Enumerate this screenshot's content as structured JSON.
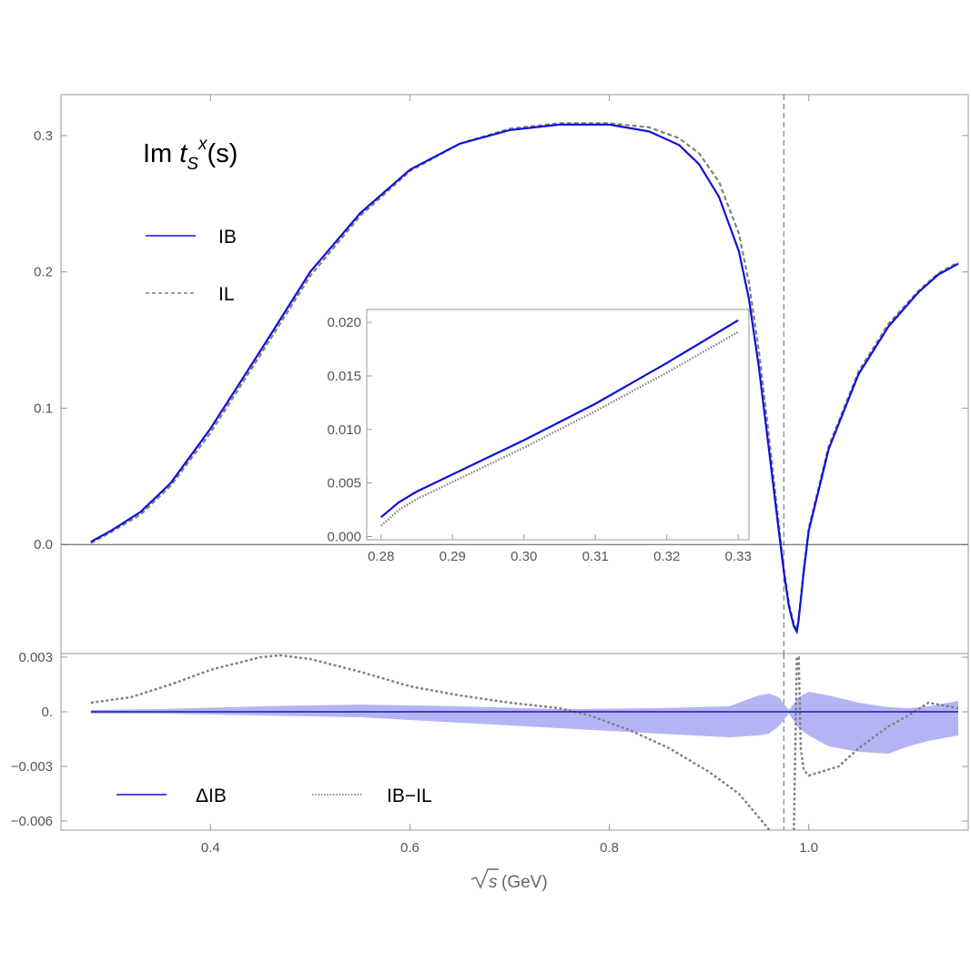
{
  "chart_data": [
    {
      "id": "main",
      "type": "line",
      "title": "",
      "annotation": {
        "prefix": "Im ",
        "t": "t",
        "sub": "S",
        "sup": "x",
        "suffix": "(s)"
      },
      "xlabel": "",
      "ylabel": "",
      "xlim": [
        0.25,
        1.16
      ],
      "ylim": [
        -0.08,
        0.33
      ],
      "xticks": [
        {
          "v": 0.4,
          "label": "0.4"
        },
        {
          "v": 0.6,
          "label": "0.6"
        },
        {
          "v": 0.8,
          "label": "0.8"
        },
        {
          "v": 1.0,
          "label": "1.0"
        }
      ],
      "yticks": [
        {
          "v": 0.0,
          "label": "0.0"
        },
        {
          "v": 0.1,
          "label": "0.1"
        },
        {
          "v": 0.2,
          "label": "0.2"
        },
        {
          "v": 0.3,
          "label": "0.3"
        }
      ],
      "vline_x": 0.975,
      "legend_position": "left",
      "colors": {
        "ib": "#1010d8",
        "il": "#808080"
      },
      "series": [
        {
          "name": "IB",
          "style": "solid",
          "x": [
            0.28,
            0.3,
            0.33,
            0.36,
            0.4,
            0.45,
            0.5,
            0.55,
            0.6,
            0.65,
            0.7,
            0.75,
            0.8,
            0.84,
            0.87,
            0.89,
            0.91,
            0.93,
            0.94,
            0.95,
            0.96,
            0.97,
            0.975,
            0.98,
            0.985,
            0.988,
            0.99,
            0.995,
            1.0,
            1.02,
            1.05,
            1.08,
            1.11,
            1.13,
            1.15
          ],
          "y": [
            0.002,
            0.01,
            0.024,
            0.045,
            0.085,
            0.142,
            0.2,
            0.243,
            0.275,
            0.294,
            0.304,
            0.308,
            0.308,
            0.303,
            0.293,
            0.279,
            0.255,
            0.215,
            0.18,
            0.13,
            0.07,
            0.01,
            -0.02,
            -0.045,
            -0.06,
            -0.064,
            -0.055,
            -0.02,
            0.01,
            0.07,
            0.125,
            0.16,
            0.185,
            0.198,
            0.206
          ]
        },
        {
          "name": "IL",
          "style": "dashed",
          "x": [
            0.28,
            0.3,
            0.33,
            0.36,
            0.4,
            0.45,
            0.5,
            0.55,
            0.6,
            0.65,
            0.7,
            0.75,
            0.8,
            0.84,
            0.87,
            0.89,
            0.91,
            0.93,
            0.94,
            0.95,
            0.96,
            0.97,
            0.975,
            0.98,
            0.985,
            0.988,
            0.99,
            0.995,
            1.0,
            1.02,
            1.05,
            1.08,
            1.11,
            1.13,
            1.15
          ],
          "y": [
            0.001,
            0.009,
            0.022,
            0.043,
            0.082,
            0.139,
            0.197,
            0.241,
            0.274,
            0.294,
            0.305,
            0.309,
            0.309,
            0.306,
            0.298,
            0.287,
            0.266,
            0.228,
            0.192,
            0.142,
            0.08,
            0.015,
            -0.017,
            -0.043,
            -0.058,
            -0.063,
            -0.053,
            -0.018,
            0.012,
            0.072,
            0.127,
            0.162,
            0.186,
            0.199,
            0.207
          ]
        }
      ]
    },
    {
      "id": "inset",
      "type": "line",
      "xlim": [
        0.278,
        0.3315
      ],
      "ylim": [
        -0.0003,
        0.0212
      ],
      "xticks": [
        {
          "v": 0.28,
          "label": "0.28"
        },
        {
          "v": 0.29,
          "label": "0.29"
        },
        {
          "v": 0.3,
          "label": "0.30"
        },
        {
          "v": 0.31,
          "label": "0.31"
        },
        {
          "v": 0.32,
          "label": "0.32"
        },
        {
          "v": 0.33,
          "label": "0.33"
        }
      ],
      "yticks": [
        {
          "v": 0.0,
          "label": "0.000"
        },
        {
          "v": 0.005,
          "label": "0.005"
        },
        {
          "v": 0.01,
          "label": "0.010"
        },
        {
          "v": 0.015,
          "label": "0.015"
        },
        {
          "v": 0.02,
          "label": "0.020"
        }
      ],
      "series": [
        {
          "name": "IB",
          "style": "solid",
          "x": [
            0.28,
            0.2825,
            0.285,
            0.29,
            0.295,
            0.3,
            0.305,
            0.31,
            0.315,
            0.32,
            0.325,
            0.33
          ],
          "y": [
            0.0018,
            0.0032,
            0.0042,
            0.0058,
            0.0074,
            0.009,
            0.0107,
            0.0124,
            0.0143,
            0.0162,
            0.0182,
            0.0202
          ]
        },
        {
          "name": "IL",
          "style": "dotted",
          "x": [
            0.28,
            0.2825,
            0.285,
            0.29,
            0.295,
            0.3,
            0.305,
            0.31,
            0.315,
            0.32,
            0.325,
            0.33
          ],
          "y": [
            0.001,
            0.0025,
            0.0035,
            0.0051,
            0.0067,
            0.0083,
            0.01,
            0.0117,
            0.0135,
            0.0153,
            0.0172,
            0.0191
          ]
        }
      ]
    },
    {
      "id": "lower",
      "type": "area",
      "xlabel_sqrt": "s",
      "xlabel_unit": "(GeV)",
      "xlim": [
        0.25,
        1.16
      ],
      "ylim": [
        -0.0065,
        0.0032
      ],
      "xticks": [
        {
          "v": 0.4,
          "label": "0.4"
        },
        {
          "v": 0.6,
          "label": "0.6"
        },
        {
          "v": 0.8,
          "label": "0.8"
        },
        {
          "v": 1.0,
          "label": "1.0"
        }
      ],
      "yticks": [
        {
          "v": 0.003,
          "label": "0.003"
        },
        {
          "v": 0.0,
          "label": "0."
        },
        {
          "v": -0.003,
          "label": "−0.003"
        },
        {
          "v": -0.006,
          "label": "−0.006"
        }
      ],
      "vline_x": 0.975,
      "legend_position": "bottom-left",
      "colors": {
        "band": "#b4b4f4",
        "center": "#1a1aa6",
        "diff": "#808080"
      },
      "series": [
        {
          "name": "ΔIB",
          "kind": "band",
          "x": [
            0.28,
            0.35,
            0.45,
            0.55,
            0.65,
            0.75,
            0.85,
            0.92,
            0.95,
            0.96,
            0.97,
            0.98,
            0.99,
            1.0,
            1.02,
            1.05,
            1.08,
            1.1,
            1.12,
            1.15
          ],
          "upper": [
            0.0001,
            0.00015,
            0.0003,
            0.0004,
            0.0003,
            0.00015,
            0.0002,
            0.0003,
            0.0009,
            0.001,
            0.0008,
            0.0001,
            0.0008,
            0.0011,
            0.0009,
            0.0005,
            0.00025,
            0.0002,
            0.0003,
            0.0006
          ],
          "lower": [
            -0.0001,
            -0.0001,
            -0.0002,
            -0.0003,
            -0.0006,
            -0.0009,
            -0.0012,
            -0.0014,
            -0.0013,
            -0.0012,
            -0.0008,
            -0.0001,
            -0.0009,
            -0.0013,
            -0.0019,
            -0.0022,
            -0.0023,
            -0.0019,
            -0.0016,
            -0.0013
          ]
        },
        {
          "name": "IB−IL",
          "kind": "dotted",
          "x": [
            0.28,
            0.32,
            0.36,
            0.4,
            0.45,
            0.47,
            0.5,
            0.55,
            0.6,
            0.65,
            0.7,
            0.75,
            0.78,
            0.82,
            0.86,
            0.9,
            0.93,
            0.95,
            0.965,
            0.975,
            0.98,
            0.985,
            0.988,
            0.99,
            0.992,
            0.995,
            1.0,
            1.03,
            1.05,
            1.08,
            1.1,
            1.12,
            1.15
          ],
          "y": [
            0.0005,
            0.0008,
            0.0015,
            0.0023,
            0.003,
            0.0031,
            0.0029,
            0.0022,
            0.0014,
            0.0009,
            0.0005,
            0.0002,
            -0.0002,
            -0.001,
            -0.002,
            -0.0033,
            -0.0045,
            -0.0058,
            -0.0068,
            -0.0068,
            -0.0068,
            -0.0068,
            0.003,
            0.003,
            -0.002,
            -0.0032,
            -0.0035,
            -0.003,
            -0.002,
            -0.0008,
            -0.0002,
            0.0005,
            0.0002
          ]
        }
      ]
    }
  ]
}
